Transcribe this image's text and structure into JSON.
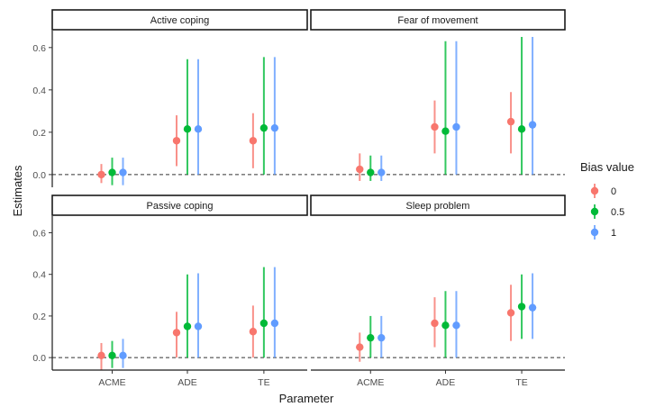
{
  "chart_data": {
    "type": "scatter",
    "xlabel": "Parameter",
    "ylabel": "Estimates",
    "categories": [
      "ACME",
      "ADE",
      "TE"
    ],
    "ylim": [
      -0.06,
      0.68
    ],
    "yticks": [
      "0.0",
      "0.2",
      "0.4",
      "0.6"
    ],
    "reference_line": 0,
    "legend": {
      "title": "Bias value",
      "placement": "right",
      "entries": [
        {
          "label": "0",
          "color": "#F8766D"
        },
        {
          "label": "0.5",
          "color": "#00BA38"
        },
        {
          "label": "1",
          "color": "#619CFF"
        }
      ]
    },
    "facets": [
      {
        "title": "Active coping",
        "series": [
          {
            "name": "0",
            "points": [
              {
                "x": "ACME",
                "y": 0.0,
                "lo": -0.04,
                "hi": 0.05
              },
              {
                "x": "ADE",
                "y": 0.16,
                "lo": 0.04,
                "hi": 0.28
              },
              {
                "x": "TE",
                "y": 0.16,
                "lo": 0.03,
                "hi": 0.29
              }
            ]
          },
          {
            "name": "0.5",
            "points": [
              {
                "x": "ACME",
                "y": 0.01,
                "lo": -0.05,
                "hi": 0.08
              },
              {
                "x": "ADE",
                "y": 0.215,
                "lo": 0.0,
                "hi": 0.545
              },
              {
                "x": "TE",
                "y": 0.22,
                "lo": 0.0,
                "hi": 0.555
              }
            ]
          },
          {
            "name": "1",
            "points": [
              {
                "x": "ACME",
                "y": 0.01,
                "lo": -0.05,
                "hi": 0.08
              },
              {
                "x": "ADE",
                "y": 0.215,
                "lo": 0.0,
                "hi": 0.545
              },
              {
                "x": "TE",
                "y": 0.22,
                "lo": 0.0,
                "hi": 0.555
              }
            ]
          }
        ]
      },
      {
        "title": "Fear of movement",
        "series": [
          {
            "name": "0",
            "points": [
              {
                "x": "ACME",
                "y": 0.025,
                "lo": -0.03,
                "hi": 0.1
              },
              {
                "x": "ADE",
                "y": 0.225,
                "lo": 0.1,
                "hi": 0.35
              },
              {
                "x": "TE",
                "y": 0.25,
                "lo": 0.1,
                "hi": 0.39
              }
            ]
          },
          {
            "name": "0.5",
            "points": [
              {
                "x": "ACME",
                "y": 0.01,
                "lo": -0.03,
                "hi": 0.09
              },
              {
                "x": "ADE",
                "y": 0.205,
                "lo": 0.0,
                "hi": 0.63
              },
              {
                "x": "TE",
                "y": 0.215,
                "lo": 0.0,
                "hi": 0.65
              }
            ]
          },
          {
            "name": "1",
            "points": [
              {
                "x": "ACME",
                "y": 0.01,
                "lo": -0.03,
                "hi": 0.09
              },
              {
                "x": "ADE",
                "y": 0.225,
                "lo": 0.0,
                "hi": 0.63
              },
              {
                "x": "TE",
                "y": 0.235,
                "lo": 0.0,
                "hi": 0.65
              }
            ]
          }
        ]
      },
      {
        "title": "Passive coping",
        "series": [
          {
            "name": "0",
            "points": [
              {
                "x": "ACME",
                "y": 0.01,
                "lo": -0.06,
                "hi": 0.07
              },
              {
                "x": "ADE",
                "y": 0.12,
                "lo": 0.0,
                "hi": 0.22
              },
              {
                "x": "TE",
                "y": 0.125,
                "lo": 0.0,
                "hi": 0.25
              }
            ]
          },
          {
            "name": "0.5",
            "points": [
              {
                "x": "ACME",
                "y": 0.01,
                "lo": -0.05,
                "hi": 0.08
              },
              {
                "x": "ADE",
                "y": 0.15,
                "lo": 0.0,
                "hi": 0.4
              },
              {
                "x": "TE",
                "y": 0.165,
                "lo": 0.0,
                "hi": 0.435
              }
            ]
          },
          {
            "name": "1",
            "points": [
              {
                "x": "ACME",
                "y": 0.01,
                "lo": -0.05,
                "hi": 0.09
              },
              {
                "x": "ADE",
                "y": 0.15,
                "lo": 0.0,
                "hi": 0.405
              },
              {
                "x": "TE",
                "y": 0.165,
                "lo": 0.0,
                "hi": 0.435
              }
            ]
          }
        ]
      },
      {
        "title": "Sleep problem",
        "series": [
          {
            "name": "0",
            "points": [
              {
                "x": "ACME",
                "y": 0.05,
                "lo": -0.02,
                "hi": 0.12
              },
              {
                "x": "ADE",
                "y": 0.165,
                "lo": 0.05,
                "hi": 0.29
              },
              {
                "x": "TE",
                "y": 0.215,
                "lo": 0.08,
                "hi": 0.35
              }
            ]
          },
          {
            "name": "0.5",
            "points": [
              {
                "x": "ACME",
                "y": 0.095,
                "lo": 0.0,
                "hi": 0.2
              },
              {
                "x": "ADE",
                "y": 0.155,
                "lo": 0.0,
                "hi": 0.32
              },
              {
                "x": "TE",
                "y": 0.245,
                "lo": 0.09,
                "hi": 0.4
              }
            ]
          },
          {
            "name": "1",
            "points": [
              {
                "x": "ACME",
                "y": 0.095,
                "lo": 0.0,
                "hi": 0.2
              },
              {
                "x": "ADE",
                "y": 0.155,
                "lo": 0.0,
                "hi": 0.32
              },
              {
                "x": "TE",
                "y": 0.24,
                "lo": 0.09,
                "hi": 0.405
              }
            ]
          }
        ]
      }
    ]
  }
}
